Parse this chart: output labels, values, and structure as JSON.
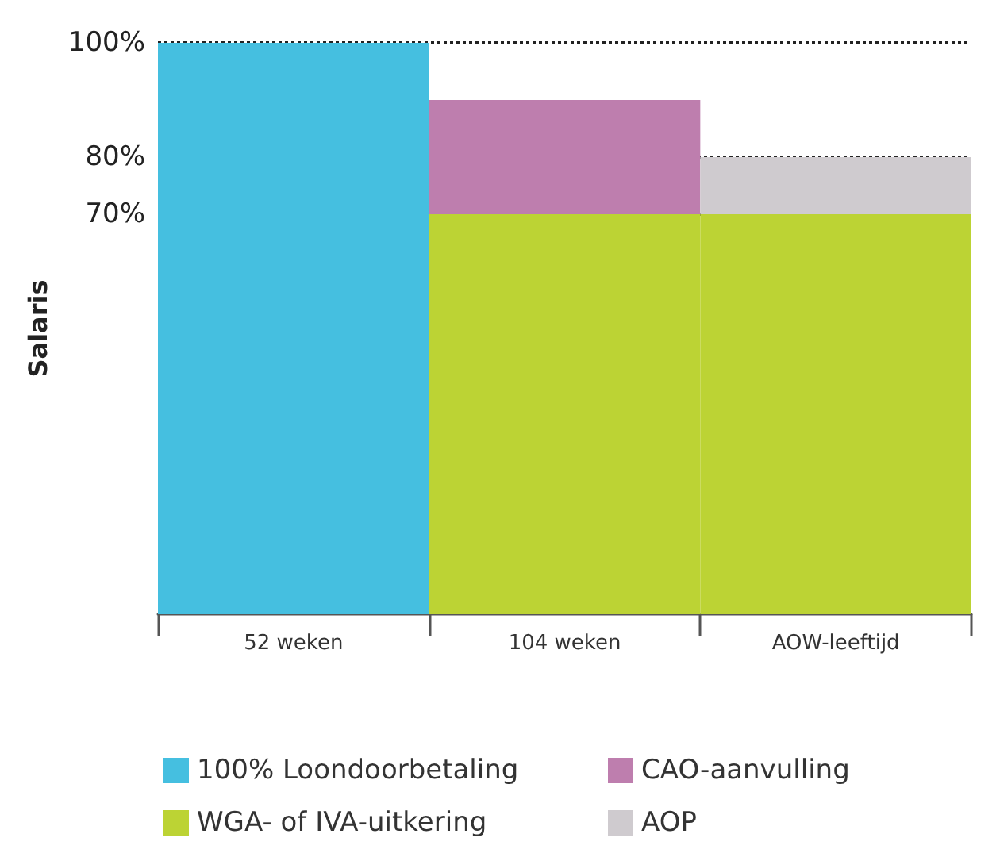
{
  "chart_data": {
    "type": "bar",
    "stacked": true,
    "ylabel": "Salaris",
    "categories": [
      "52 weken",
      "104 weken",
      "AOW-leeftijd"
    ],
    "series": [
      {
        "name": "100% Loondoorbetaling",
        "color": "#45bfe0",
        "values": [
          100,
          null,
          null
        ]
      },
      {
        "name": "WGA- of IVA-uitkering",
        "color": "#bcd334",
        "values": [
          null,
          70,
          70
        ]
      },
      {
        "name": "CAO-aanvulling",
        "color": "#be7eae",
        "values": [
          null,
          20,
          null
        ]
      },
      {
        "name": "AOP",
        "color": "#cfcbcf",
        "values": [
          null,
          null,
          10
        ]
      }
    ],
    "ylim": [
      0,
      100
    ],
    "yticks": [
      {
        "value": 70,
        "label": "70%"
      },
      {
        "value": 80,
        "label": "80%"
      },
      {
        "value": 100,
        "label": "100%"
      }
    ],
    "grid": "y",
    "legend": "bottom"
  }
}
